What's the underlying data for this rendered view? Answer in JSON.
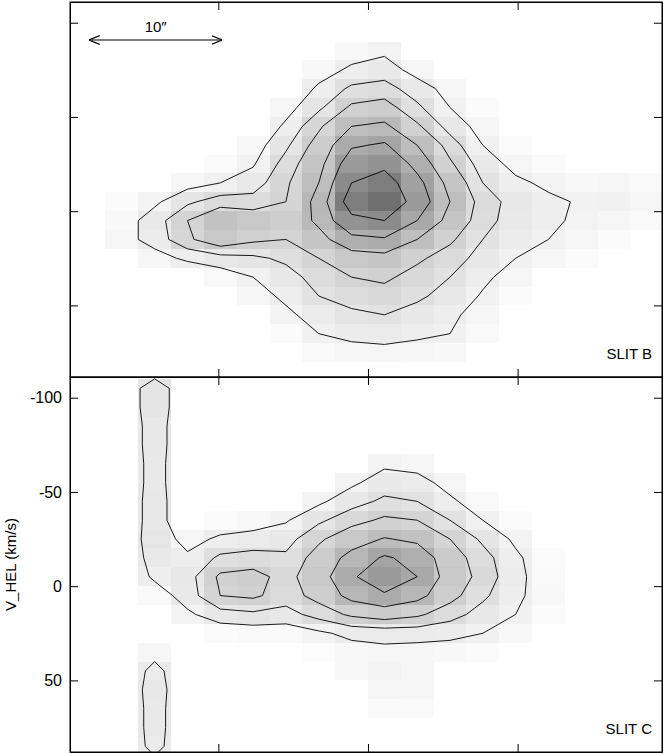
{
  "chart_data": [
    {
      "type": "heatmap",
      "title": "SLIT B",
      "annotations": [
        {
          "text": "10″",
          "length": 10
        }
      ],
      "xlim": [
        -22.7,
        22.4
      ],
      "ylim": [
        -111,
        88
      ],
      "xticks": [
        -11.4,
        0,
        11.4
      ],
      "yticks": [
        -100,
        -50,
        0,
        50
      ],
      "tick_labels": false,
      "zlim": [
        0,
        10
      ],
      "contour_levels": [
        1,
        2,
        3,
        4.5,
        6,
        8
      ],
      "x": [
        -21.25,
        -18.75,
        -16.25,
        -13.75,
        -11.25,
        -8.75,
        -6.25,
        -3.75,
        -1.25,
        1.25,
        3.75,
        6.25,
        8.75,
        11.25,
        13.75,
        16.25,
        18.75,
        21.25
      ],
      "y": [
        -105,
        -95,
        -85,
        -75,
        -65,
        -55,
        -45,
        -35,
        -25,
        -15,
        -5,
        5,
        15,
        25,
        35,
        45,
        55,
        65,
        75,
        85
      ],
      "z": [
        [
          0,
          0,
          0,
          0,
          0,
          0,
          0,
          0,
          0,
          0,
          0,
          0,
          0,
          0,
          0,
          0,
          0,
          0
        ],
        [
          0,
          0,
          0,
          0,
          0,
          0,
          0,
          0,
          0,
          0,
          0,
          0,
          0,
          0,
          0,
          0,
          0,
          0
        ],
        [
          0,
          0,
          0,
          0,
          0,
          0,
          0,
          0,
          0.5,
          0.8,
          0,
          0,
          0,
          0,
          0,
          0,
          0,
          0
        ],
        [
          0,
          0,
          0,
          0,
          0,
          0,
          0,
          0.5,
          1.2,
          1.5,
          0.6,
          0,
          0,
          0,
          0,
          0,
          0,
          0
        ],
        [
          0,
          0,
          0,
          0,
          0,
          0,
          0,
          1.2,
          2.2,
          2.4,
          1.5,
          0.6,
          0,
          0,
          0,
          0,
          0,
          0
        ],
        [
          0,
          0,
          0,
          0,
          0,
          0,
          0.6,
          1.8,
          3.2,
          3.5,
          2.2,
          1.0,
          0.3,
          0,
          0,
          0,
          0,
          0
        ],
        [
          0,
          0,
          0,
          0,
          0,
          0,
          1.2,
          2.8,
          4.5,
          4.8,
          3.2,
          1.6,
          0.6,
          0,
          0,
          0,
          0,
          0
        ],
        [
          0,
          0,
          0,
          0,
          0,
          0.5,
          1.8,
          3.5,
          5.8,
          6.2,
          4.5,
          2.5,
          1.0,
          0.3,
          0,
          0,
          0,
          0
        ],
        [
          0,
          0,
          0,
          0,
          0.3,
          0.9,
          2.4,
          4.0,
          7.0,
          7.5,
          5.5,
          3.2,
          1.5,
          0.7,
          0.3,
          0,
          0,
          0
        ],
        [
          0,
          0,
          0,
          0.6,
          1.0,
          1.5,
          2.8,
          4.5,
          8.0,
          9.0,
          6.5,
          4.0,
          2.0,
          1.2,
          0.8,
          0.5,
          0.6,
          0.4
        ],
        [
          0,
          0.3,
          0.8,
          1.8,
          2.5,
          2.4,
          3.0,
          5.0,
          9.0,
          10.0,
          7.0,
          4.5,
          2.5,
          1.6,
          1.2,
          0.9,
          1.0,
          0.6
        ],
        [
          0,
          0.5,
          1.5,
          3.0,
          4.2,
          3.8,
          3.4,
          4.8,
          7.5,
          8.0,
          6.0,
          4.0,
          2.4,
          1.5,
          1.2,
          0.8,
          0.6,
          0.4
        ],
        [
          0,
          0.6,
          1.4,
          2.8,
          3.8,
          3.2,
          3.0,
          4.0,
          5.5,
          5.8,
          4.5,
          3.2,
          2.0,
          1.3,
          1.0,
          0.6,
          0.3,
          0
        ],
        [
          0,
          0,
          0.6,
          1.2,
          1.6,
          1.8,
          2.2,
          3.0,
          3.8,
          4.0,
          3.2,
          2.5,
          1.6,
          1.0,
          0.6,
          0.3,
          0,
          0
        ],
        [
          0,
          0,
          0,
          0,
          0.4,
          1.0,
          1.6,
          2.4,
          3.0,
          3.2,
          2.6,
          2.0,
          1.2,
          0.6,
          0,
          0,
          0,
          0
        ],
        [
          0,
          0,
          0,
          0,
          0,
          0.6,
          1.2,
          2.0,
          2.4,
          2.6,
          2.2,
          1.6,
          0.9,
          0.3,
          0,
          0,
          0,
          0
        ],
        [
          0,
          0,
          0,
          0,
          0,
          0,
          0.8,
          1.4,
          1.8,
          2.0,
          1.6,
          1.2,
          0.6,
          0,
          0,
          0,
          0,
          0
        ],
        [
          0,
          0,
          0,
          0,
          0,
          0,
          0.3,
          1.0,
          1.3,
          1.4,
          1.2,
          1.0,
          0.4,
          0,
          0,
          0,
          0,
          0
        ],
        [
          0,
          0,
          0,
          0,
          0,
          0,
          0,
          0.4,
          0.6,
          0.7,
          0.6,
          0.5,
          0,
          0,
          0,
          0,
          0,
          0
        ],
        [
          0,
          0,
          0,
          0,
          0,
          0,
          0,
          0,
          0,
          0,
          0,
          0,
          0,
          0,
          0,
          0,
          0,
          0
        ]
      ]
    },
    {
      "type": "heatmap",
      "title": "SLIT C",
      "ylabel": "V_HEL (km/s)",
      "xlim": [
        -22.7,
        22.4
      ],
      "ylim": [
        -111,
        88
      ],
      "xticks": [
        -11.4,
        0,
        11.4
      ],
      "yticks": [
        -100,
        -50,
        0,
        50
      ],
      "tick_labels": "y",
      "zlim": [
        0,
        10
      ],
      "contour_levels": [
        1,
        2,
        3,
        4.5,
        6
      ],
      "x": [
        -21.25,
        -18.75,
        -16.25,
        -13.75,
        -11.25,
        -8.75,
        -6.25,
        -3.75,
        -1.25,
        1.25,
        3.75,
        6.25,
        8.75,
        11.25,
        13.75,
        16.25,
        18.75,
        21.25
      ],
      "y": [
        -105,
        -95,
        -85,
        -75,
        -65,
        -55,
        -45,
        -35,
        -25,
        -15,
        -5,
        5,
        15,
        25,
        35,
        45,
        55,
        65,
        75,
        85
      ],
      "z": [
        [
          0,
          0,
          1.8,
          0,
          0,
          0,
          0,
          0,
          0,
          0,
          0,
          0,
          0,
          0,
          0,
          0,
          0,
          0
        ],
        [
          0,
          0,
          1.8,
          0,
          0,
          0,
          0,
          0,
          0,
          0,
          0,
          0,
          0,
          0,
          0,
          0,
          0,
          0
        ],
        [
          0,
          0,
          1.6,
          0,
          0,
          0,
          0,
          0,
          0,
          0,
          0,
          0,
          0,
          0,
          0,
          0,
          0,
          0
        ],
        [
          0,
          0,
          1.6,
          0,
          0,
          0,
          0,
          0,
          0,
          0,
          0,
          0,
          0,
          0,
          0,
          0,
          0,
          0
        ],
        [
          0,
          0,
          1.5,
          0,
          0,
          0,
          0,
          0,
          0,
          0.8,
          0.6,
          0,
          0,
          0,
          0,
          0,
          0,
          0
        ],
        [
          0,
          0,
          1.5,
          0,
          0,
          0,
          0,
          0,
          0.8,
          1.5,
          1.4,
          0.6,
          0,
          0,
          0,
          0,
          0,
          0
        ],
        [
          0,
          0,
          1.6,
          0,
          0,
          0,
          0,
          0.8,
          1.6,
          2.2,
          2.0,
          1.2,
          0.4,
          0,
          0,
          0,
          0,
          0
        ],
        [
          0,
          0,
          1.6,
          0,
          0.3,
          0.5,
          0.9,
          1.8,
          2.6,
          3.2,
          3.0,
          2.0,
          1.0,
          0.3,
          0,
          0,
          0,
          0
        ],
        [
          0,
          0,
          1.7,
          0.6,
          1.2,
          1.4,
          1.6,
          2.8,
          3.8,
          4.6,
          4.2,
          3.0,
          1.8,
          0.8,
          0,
          0,
          0,
          0
        ],
        [
          0,
          0,
          1.5,
          1.2,
          2.2,
          2.4,
          2.2,
          3.5,
          5.0,
          6.2,
          5.5,
          3.6,
          2.4,
          1.2,
          0.3,
          0,
          0,
          0
        ],
        [
          0,
          0,
          1.2,
          1.6,
          3.2,
          3.4,
          2.6,
          3.8,
          5.8,
          7.0,
          6.0,
          3.8,
          2.6,
          1.3,
          0.4,
          0,
          0,
          0
        ],
        [
          0,
          0,
          0.4,
          1.5,
          3.0,
          3.2,
          2.5,
          3.4,
          5.0,
          5.8,
          5.0,
          3.4,
          2.2,
          1.2,
          0.5,
          0,
          0,
          0
        ],
        [
          0,
          0,
          0,
          0.8,
          1.6,
          1.8,
          1.6,
          2.4,
          3.2,
          3.6,
          3.2,
          2.4,
          1.6,
          1.0,
          0.3,
          0,
          0,
          0
        ],
        [
          0,
          0,
          0,
          0,
          0.3,
          0.4,
          0.4,
          0.8,
          1.3,
          1.4,
          1.4,
          1.3,
          1.0,
          0.5,
          0,
          0,
          0,
          0
        ],
        [
          0,
          0,
          0.6,
          0,
          0,
          0,
          0,
          0.2,
          0.5,
          0.7,
          0.6,
          0.5,
          0.3,
          0,
          0,
          0,
          0,
          0
        ],
        [
          0,
          0,
          1.4,
          0,
          0,
          0,
          0,
          0,
          0.5,
          0.8,
          0.6,
          0,
          0,
          0,
          0,
          0,
          0,
          0
        ],
        [
          0,
          0,
          1.6,
          0,
          0,
          0,
          0,
          0,
          0,
          0.7,
          0.6,
          0,
          0,
          0,
          0,
          0,
          0,
          0
        ],
        [
          0,
          0,
          1.5,
          0,
          0,
          0,
          0,
          0,
          0,
          0.4,
          0.4,
          0,
          0,
          0,
          0,
          0,
          0,
          0
        ],
        [
          0,
          0,
          1.5,
          0,
          0,
          0,
          0,
          0,
          0,
          0,
          0,
          0,
          0,
          0,
          0,
          0,
          0,
          0
        ],
        [
          0,
          0,
          1.4,
          0,
          0,
          0,
          0,
          0,
          0,
          0,
          0,
          0,
          0,
          0,
          0,
          0,
          0,
          0
        ]
      ]
    }
  ]
}
